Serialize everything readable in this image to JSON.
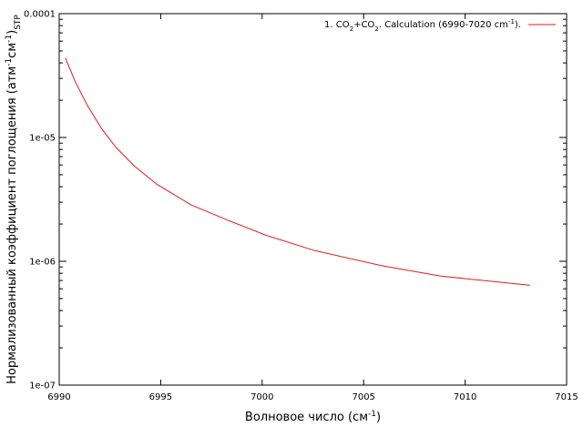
{
  "chart_data": {
    "type": "line",
    "xlabel": {
      "prefix": "Волновое число (см",
      "sup": "-1",
      "suffix": ")"
    },
    "ylabel": {
      "prefix": "Нормализованный коэффициент поглощения (атм",
      "sup1": "-1",
      "mid": "см",
      "sup2": "-1",
      "close": ")",
      "sub": "STP"
    },
    "xlim": [
      6990,
      7015
    ],
    "ylim": [
      1e-07,
      0.0001
    ],
    "yscale": "log",
    "grid": false,
    "legend_position": "top-right",
    "x_ticks": [
      6990,
      6995,
      7000,
      7005,
      7010,
      7015
    ],
    "y_ticks": [
      {
        "value": 1e-07,
        "label": "1e-07"
      },
      {
        "value": 1e-06,
        "label": "1e-06"
      },
      {
        "value": 1e-05,
        "label": "1e-05"
      },
      {
        "value": 0.0001,
        "label": "0.0001"
      }
    ],
    "series": [
      {
        "name": {
          "t1": "1. CO",
          "s1": "2",
          "t2": "+CO",
          "s2": "2",
          "t3": ". Calculation (6990-7020 cm",
          "sup": "-1",
          "t4": ")."
        },
        "color": "#e41a1c",
        "x": [
          6990.3,
          6990.8,
          6991.4,
          6992.1,
          6992.8,
          6993.7,
          6994.8,
          6996.5,
          6998.3,
          7000.2,
          7002.6,
          7005.9,
          7008.8,
          7013.2
        ],
        "y": [
          4.4e-05,
          2.8e-05,
          1.8e-05,
          1.17e-05,
          8.3e-06,
          5.9e-06,
          4.2e-06,
          2.85e-06,
          2.15e-06,
          1.62e-06,
          1.22e-06,
          9.2e-07,
          7.6e-07,
          6.4e-07
        ]
      }
    ]
  }
}
